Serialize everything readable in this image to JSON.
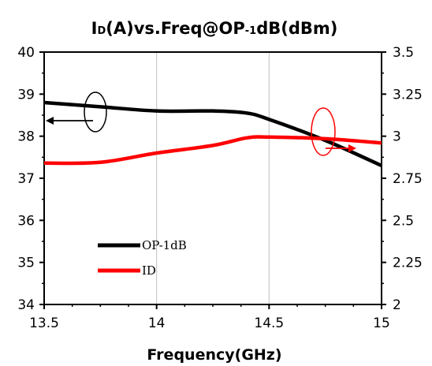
{
  "chart_data": {
    "type": "line",
    "title": {
      "parts": [
        {
          "text": "I",
          "sub": false
        },
        {
          "text": "D",
          "sub": true
        },
        {
          "text": "(A)vs.Freq@OP",
          "sub": false
        },
        {
          "text": "-1",
          "sub": true
        },
        {
          "text": "dB(dBm)",
          "sub": false
        }
      ]
    },
    "xlabel": "Frequency(GHz)",
    "xlim": [
      13.5,
      15
    ],
    "ylim_left": [
      34,
      40
    ],
    "ylim_right": [
      2,
      3.5
    ],
    "x_ticks": [
      "13.5",
      "14",
      "14.5",
      "15"
    ],
    "y_ticks_left": [
      "34",
      "35",
      "36",
      "37",
      "38",
      "39",
      "40"
    ],
    "y_ticks_right": [
      "2",
      "2.25",
      "2.5",
      "2.75",
      "3",
      "3.25",
      "3.5"
    ],
    "grid": "vertical",
    "legend_position": "bottom-left",
    "series": [
      {
        "name": "OP-1dB",
        "axis": "left",
        "color": "#000000",
        "x": [
          13.5,
          13.75,
          14.0,
          14.25,
          14.4,
          14.5,
          14.75,
          15.0
        ],
        "values": [
          38.8,
          38.7,
          38.6,
          38.6,
          38.55,
          38.4,
          37.9,
          37.3
        ]
      },
      {
        "name": "ID",
        "axis": "right",
        "color": "#ff0000",
        "x": [
          13.5,
          13.75,
          14.0,
          14.25,
          14.4,
          14.5,
          14.75,
          15.0
        ],
        "values": [
          2.84,
          2.845,
          2.9,
          2.945,
          2.99,
          2.995,
          2.985,
          2.96
        ]
      }
    ],
    "annotations": [
      {
        "type": "ellipse-arrow",
        "series": "OP-1dB",
        "points_to": "left-axis",
        "color": "#000000"
      },
      {
        "type": "ellipse-arrow",
        "series": "ID",
        "points_to": "right-axis",
        "color": "#ff0000"
      }
    ]
  }
}
